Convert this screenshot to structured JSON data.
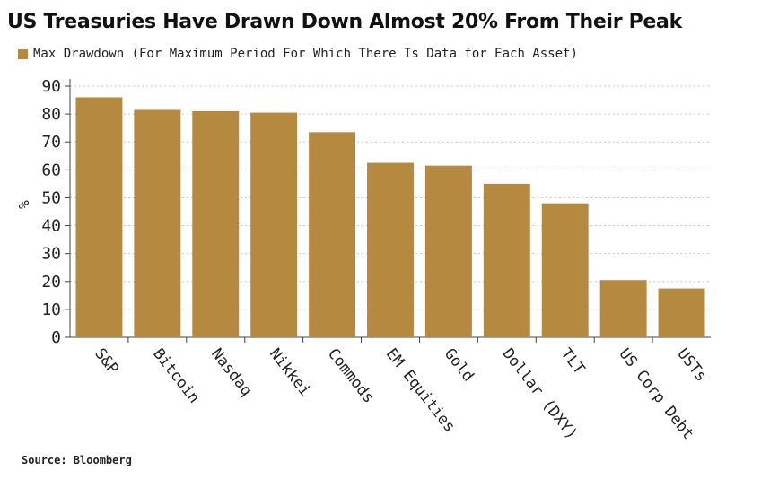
{
  "chart_data": {
    "type": "bar",
    "title": "US Treasuries Have Drawn Down Almost 20% From Their Peak",
    "legend": "Max Drawdown (For Maximum Period For Which There Is Data for Each Asset)",
    "ylabel": "%",
    "xlabel": "",
    "ylim": [
      0,
      90
    ],
    "yticks": [
      "0",
      "10",
      "20",
      "30",
      "40",
      "50",
      "60",
      "70",
      "80",
      "90"
    ],
    "categories": [
      "S&P",
      "Bitcoin",
      "Nasdaq",
      "Nikkei",
      "Commods",
      "EM Equities",
      "Gold",
      "Dollar (DXY)",
      "TLT",
      "US Corp Debt",
      "USTs"
    ],
    "values": [
      86,
      81.5,
      81,
      80.5,
      73.5,
      62.5,
      61.5,
      55,
      48,
      20.5,
      17.5
    ],
    "grid": true,
    "legend_position": "top-left",
    "color": "#b58a40",
    "source": "Source: Bloomberg"
  }
}
